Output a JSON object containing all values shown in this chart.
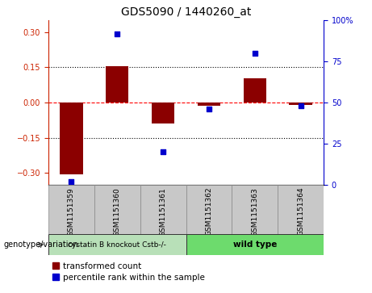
{
  "title": "GDS5090 / 1440260_at",
  "samples": [
    "GSM1151359",
    "GSM1151360",
    "GSM1151361",
    "GSM1151362",
    "GSM1151363",
    "GSM1151364"
  ],
  "transformed_count": [
    -0.305,
    0.155,
    -0.09,
    -0.015,
    0.105,
    -0.01
  ],
  "percentile_rank": [
    2,
    92,
    20,
    46,
    80,
    48
  ],
  "ylim_left": [
    -0.35,
    0.35
  ],
  "ylim_right": [
    0,
    100
  ],
  "yticks_left": [
    -0.3,
    -0.15,
    0,
    0.15,
    0.3
  ],
  "yticks_right": [
    0,
    25,
    50,
    75,
    100
  ],
  "hline_values": [
    -0.15,
    0.0,
    0.15
  ],
  "bar_color": "#8B0000",
  "dot_color": "#0000CD",
  "bar_width": 0.5,
  "legend_items": [
    "transformed count",
    "percentile rank within the sample"
  ],
  "genotype_label": "genotype/variation",
  "group1_label": "cystatin B knockout Cstb-/-",
  "group2_label": "wild type",
  "group1_color": "#b8e0b8",
  "group2_color": "#6ddb6d",
  "sample_box_color": "#c8c8c8",
  "left_axis_color": "#cc2200",
  "right_axis_color": "#0000cc"
}
